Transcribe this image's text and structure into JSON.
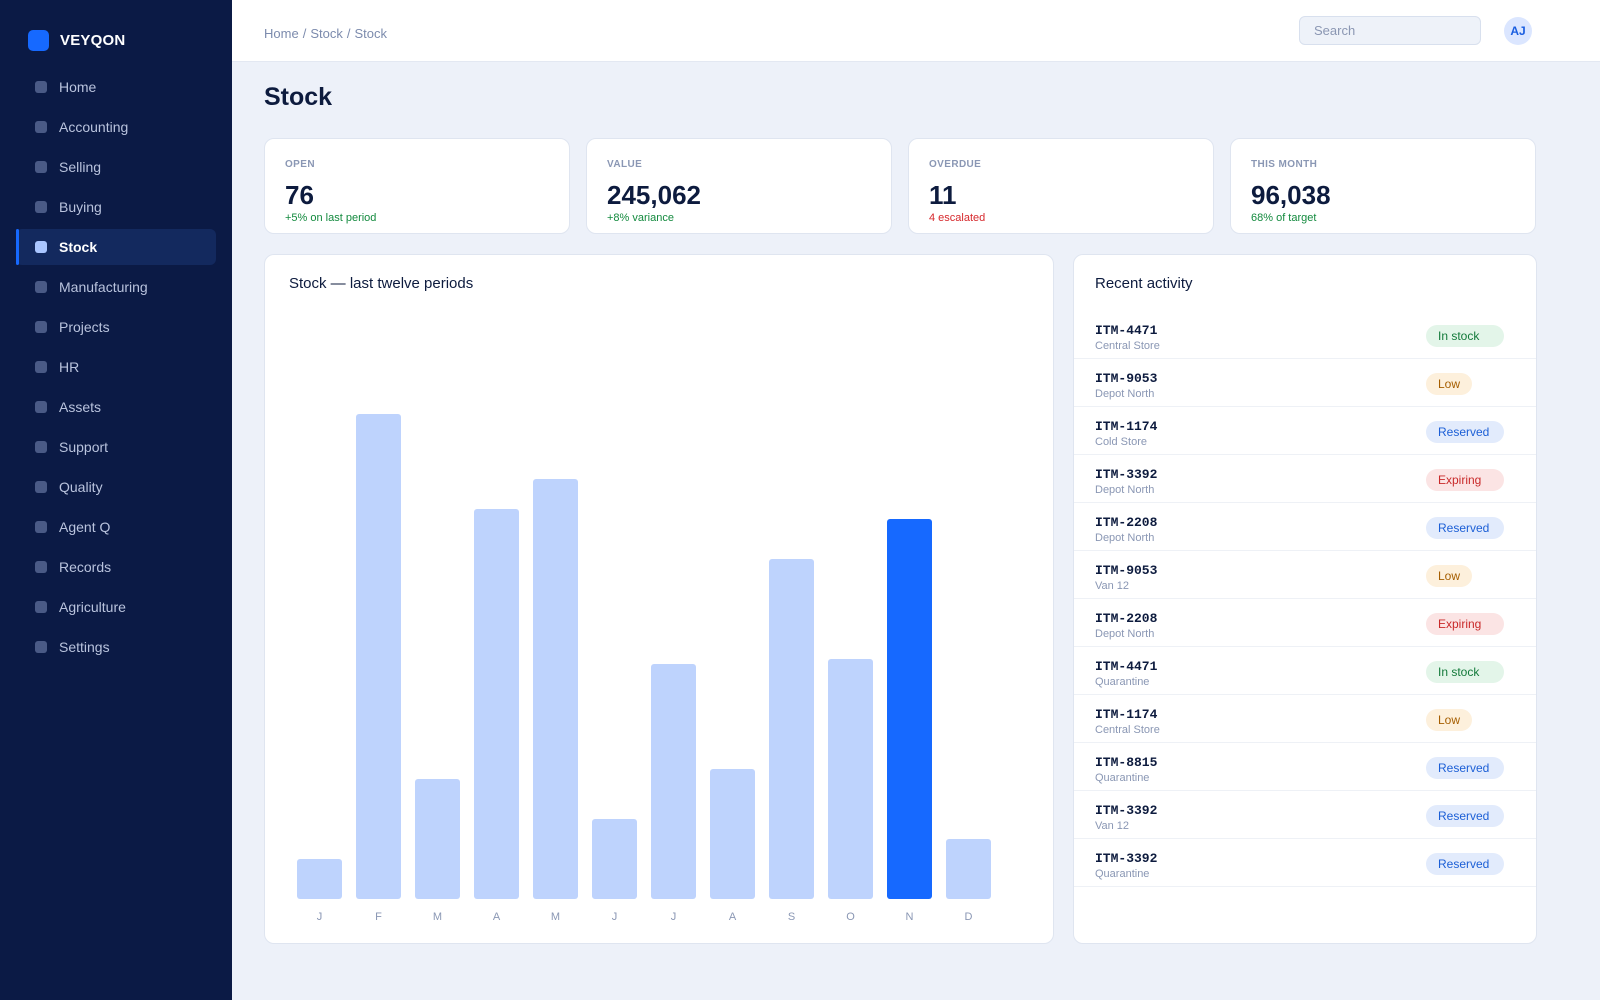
{
  "app": {
    "name": "VEYQON"
  },
  "sidebar": {
    "items": [
      {
        "label": "Home"
      },
      {
        "label": "Accounting"
      },
      {
        "label": "Selling"
      },
      {
        "label": "Buying"
      },
      {
        "label": "Stock",
        "active": true
      },
      {
        "label": "Manufacturing"
      },
      {
        "label": "Projects"
      },
      {
        "label": "HR"
      },
      {
        "label": "Assets"
      },
      {
        "label": "Support"
      },
      {
        "label": "Quality"
      },
      {
        "label": "Agent Q"
      },
      {
        "label": "Records"
      },
      {
        "label": "Agriculture"
      },
      {
        "label": "Settings"
      }
    ]
  },
  "header": {
    "breadcrumb": [
      "Home",
      "Stock",
      "Stock"
    ],
    "breadcrumb_sep": "/",
    "search_placeholder": "Search",
    "avatar_initials": "AJ"
  },
  "page": {
    "title": "Stock"
  },
  "kpis": [
    {
      "label": "OPEN",
      "value": "76",
      "delta": "+5% on last period",
      "tone": "positive"
    },
    {
      "label": "VALUE",
      "value": "245,062",
      "delta": "+8% variance",
      "tone": "positive"
    },
    {
      "label": "OVERDUE",
      "value": "11",
      "delta": "4 escalated",
      "tone": "negative"
    },
    {
      "label": "THIS MONTH",
      "value": "96,038",
      "delta": "68% of target",
      "tone": "positive"
    }
  ],
  "chart": {
    "title": "Stock — last twelve periods"
  },
  "chart_data": {
    "type": "bar",
    "title": "Stock — last twelve periods",
    "categories": [
      "J",
      "F",
      "M",
      "A",
      "M",
      "J",
      "J",
      "A",
      "S",
      "O",
      "N",
      "D"
    ],
    "values": [
      8,
      97,
      24,
      78,
      84,
      16,
      47,
      26,
      68,
      48,
      76,
      12
    ],
    "highlight_index": 10,
    "ylim": [
      0,
      100
    ],
    "grid": false,
    "colors": {
      "bar": "#bed3fd",
      "highlight": "#1669ff",
      "tick": "#8a97b4"
    }
  },
  "activity": {
    "title": "Recent activity",
    "items": [
      {
        "id": "ITM-4471",
        "location": "Central Store",
        "status": "In stock",
        "kind": "in-stock"
      },
      {
        "id": "ITM-9053",
        "location": "Depot North",
        "status": "Low",
        "kind": "low"
      },
      {
        "id": "ITM-1174",
        "location": "Cold Store",
        "status": "Reserved",
        "kind": "reserved"
      },
      {
        "id": "ITM-3392",
        "location": "Depot North",
        "status": "Expiring",
        "kind": "expiring"
      },
      {
        "id": "ITM-2208",
        "location": "Depot North",
        "status": "Reserved",
        "kind": "reserved"
      },
      {
        "id": "ITM-9053",
        "location": "Van 12",
        "status": "Low",
        "kind": "low"
      },
      {
        "id": "ITM-2208",
        "location": "Depot North",
        "status": "Expiring",
        "kind": "expiring"
      },
      {
        "id": "ITM-4471",
        "location": "Quarantine",
        "status": "In stock",
        "kind": "in-stock"
      },
      {
        "id": "ITM-1174",
        "location": "Central Store",
        "status": "Low",
        "kind": "low"
      },
      {
        "id": "ITM-8815",
        "location": "Quarantine",
        "status": "Reserved",
        "kind": "reserved"
      },
      {
        "id": "ITM-3392",
        "location": "Van 12",
        "status": "Reserved",
        "kind": "reserved"
      },
      {
        "id": "ITM-3392",
        "location": "Quarantine",
        "status": "Reserved",
        "kind": "reserved"
      }
    ]
  }
}
